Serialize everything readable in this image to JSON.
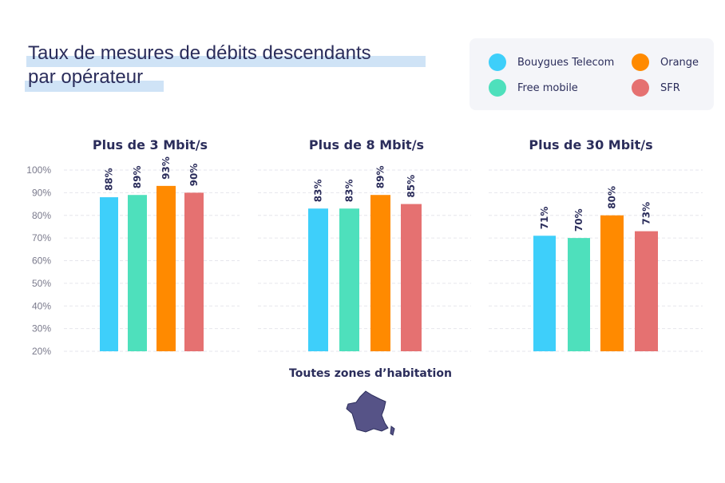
{
  "title": {
    "part1": "Taux de mesures de ",
    "bold": "débits descendants",
    "line2": "par opérateur"
  },
  "legend": [
    {
      "name": "Bouygues Telecom",
      "color": "#3ecffa"
    },
    {
      "name": "Free mobile",
      "color": "#4ee0bc"
    },
    {
      "name": "Orange",
      "color": "#ff8a00"
    },
    {
      "name": "SFR",
      "color": "#e57171"
    }
  ],
  "footer": {
    "label": "Toutes zones d’habitation",
    "icon": "france-map-icon"
  },
  "chart_data": [
    {
      "type": "bar",
      "title": "Plus de 3 Mbit/s",
      "categories": [
        "Bouygues Telecom",
        "Free mobile",
        "Orange",
        "SFR"
      ],
      "values": [
        88,
        89,
        93,
        90
      ],
      "labels": [
        "88%",
        "89%",
        "93%",
        "90%"
      ],
      "ylim": [
        20,
        100
      ],
      "yticks": [
        "20%",
        "30%",
        "40%",
        "50%",
        "60%",
        "70%",
        "80%",
        "90%",
        "100%"
      ],
      "grid": true
    },
    {
      "type": "bar",
      "title": "Plus de 8 Mbit/s",
      "categories": [
        "Bouygues Telecom",
        "Free mobile",
        "Orange",
        "SFR"
      ],
      "values": [
        83,
        83,
        89,
        85
      ],
      "labels": [
        "83%",
        "83%",
        "89%",
        "85%"
      ],
      "ylim": [
        20,
        100
      ],
      "grid": true
    },
    {
      "type": "bar",
      "title": "Plus de 30 Mbit/s",
      "categories": [
        "Bouygues Telecom",
        "Free mobile",
        "Orange",
        "SFR"
      ],
      "values": [
        71,
        70,
        80,
        73
      ],
      "labels": [
        "71%",
        "70%",
        "80%",
        "73%"
      ],
      "ylim": [
        20,
        100
      ],
      "grid": true
    }
  ]
}
